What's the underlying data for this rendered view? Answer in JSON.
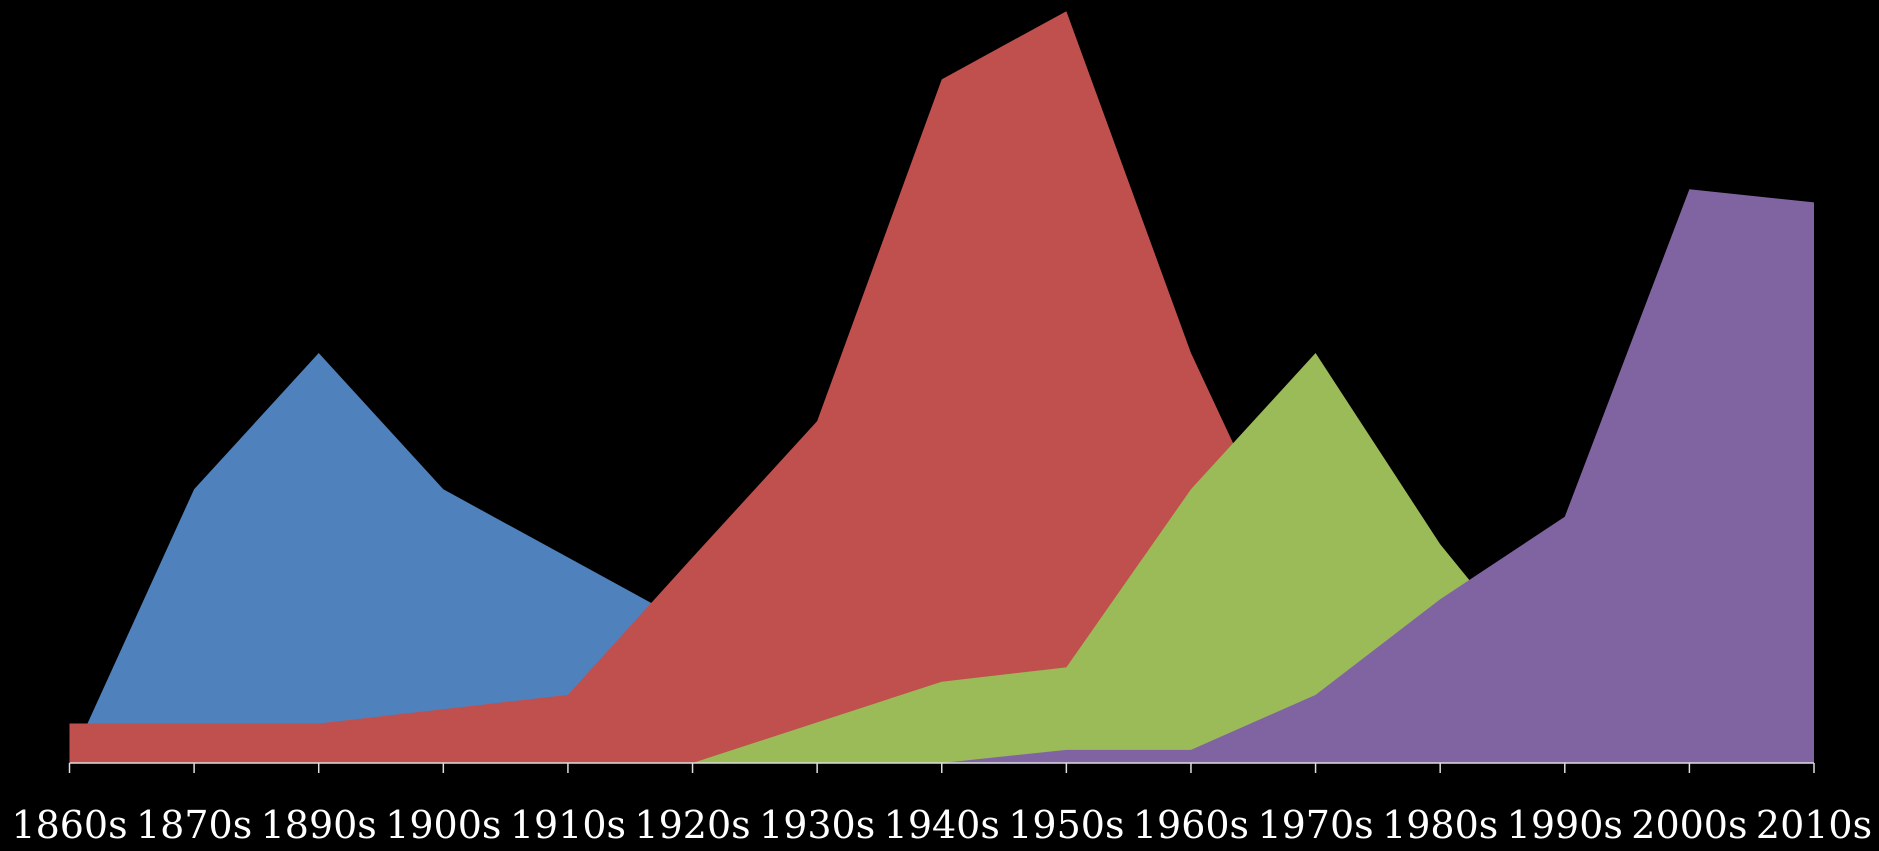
{
  "chart_data": {
    "type": "area",
    "categories": [
      "1860s",
      "1870s",
      "1890s",
      "1900s",
      "1910s",
      "1920s",
      "1930s",
      "1940s",
      "1950s",
      "1960s",
      "1970s",
      "1980s",
      "1990s",
      "2000s",
      "2010s"
    ],
    "series": [
      {
        "color": "#4f81bd",
        "values": [
          0,
          229,
          343,
          229,
          172,
          115,
          0,
          0,
          0,
          0,
          0,
          0,
          0,
          0,
          0
        ]
      },
      {
        "color": "#c0504d",
        "values": [
          33,
          33,
          33,
          45,
          57,
          172,
          286,
          572,
          629,
          343,
          120,
          0,
          0,
          0,
          0
        ]
      },
      {
        "color": "#9bbb59",
        "values": [
          0,
          0,
          0,
          0,
          0,
          0,
          34,
          68,
          80,
          229,
          343,
          183,
          55,
          0,
          0
        ]
      },
      {
        "color": "#8064a2",
        "values": [
          0,
          0,
          0,
          0,
          0,
          0,
          0,
          0,
          11,
          11,
          57,
          137,
          206,
          480,
          469
        ]
      }
    ],
    "ylim": [
      0,
      630
    ]
  }
}
